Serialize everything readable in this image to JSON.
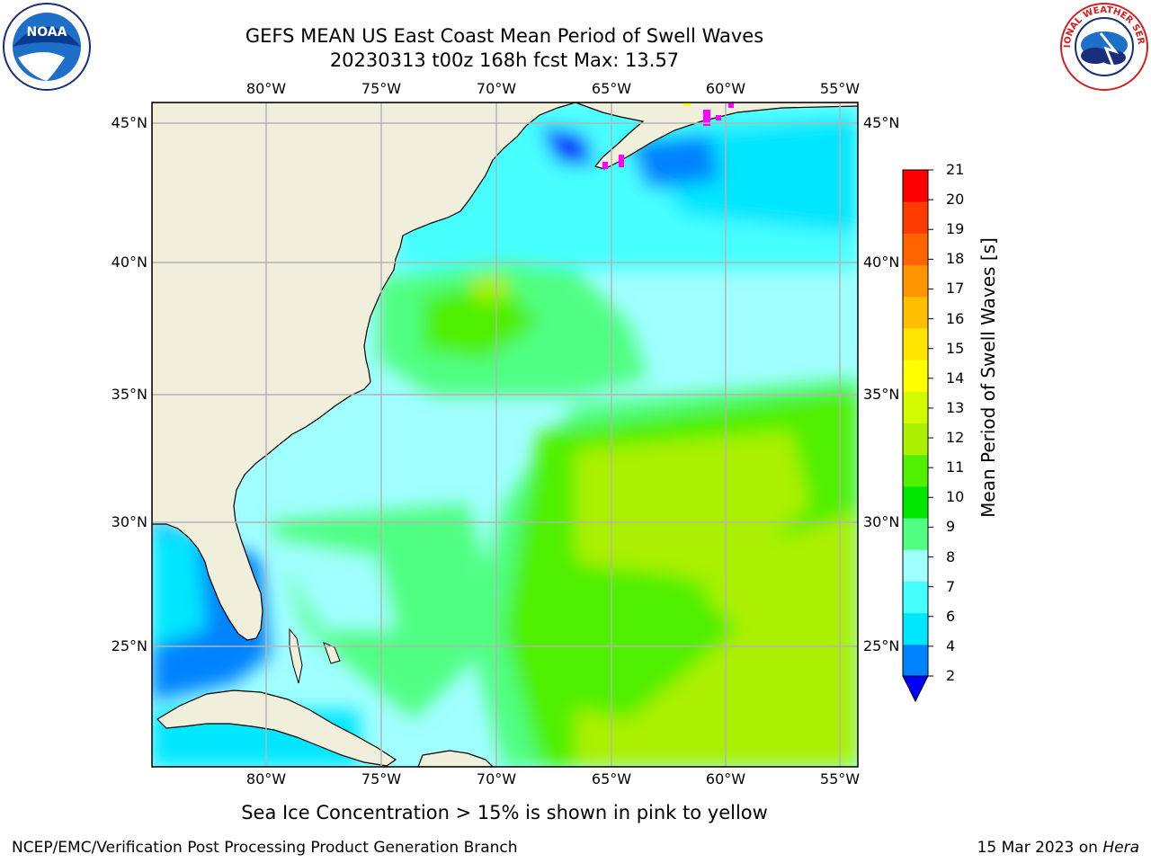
{
  "title": {
    "line1": "GEFS MEAN US East Coast Mean Period of Swell Waves",
    "line2": "20230313 t00z 168h fcst   Max: 13.57"
  },
  "logos": {
    "left": "noaa-logo",
    "left_text": "NOAA",
    "right": "national-weather-service-logo",
    "right_text": "NATIONAL WEATHER SERVICE"
  },
  "map": {
    "longitude_labels": [
      "80°W",
      "75°W",
      "70°W",
      "65°W",
      "60°W",
      "55°W"
    ],
    "latitude_labels": [
      "45°N",
      "40°N",
      "35°N",
      "30°N",
      "25°N"
    ],
    "land_color": "#efefdc",
    "grid_color": "#b4b4b4"
  },
  "colorbar": {
    "label": "Mean Period of Swell Waves [s]",
    "ticks": [
      "2",
      "4",
      "6",
      "7",
      "8",
      "9",
      "10",
      "11",
      "12",
      "13",
      "14",
      "15",
      "16",
      "17",
      "18",
      "19",
      "20",
      "21"
    ],
    "under_color": "#0000ff",
    "colors": [
      "#0082ff",
      "#00e6ff",
      "#46ffff",
      "#a0ffff",
      "#50ff82",
      "#00e600",
      "#50f000",
      "#aaf000",
      "#d2fa00",
      "#ffff00",
      "#ffe600",
      "#ffbe00",
      "#ff9600",
      "#ff6400",
      "#ff3c00",
      "#ff0000"
    ]
  },
  "note": "Sea Ice Concentration > 15% is shown in pink to yellow",
  "footer": {
    "left": "NCEP/EMC/Verification Post Processing Product Generation Branch",
    "right_prefix": "15 Mar 2023 on ",
    "right_emphasis": "Hera"
  }
}
